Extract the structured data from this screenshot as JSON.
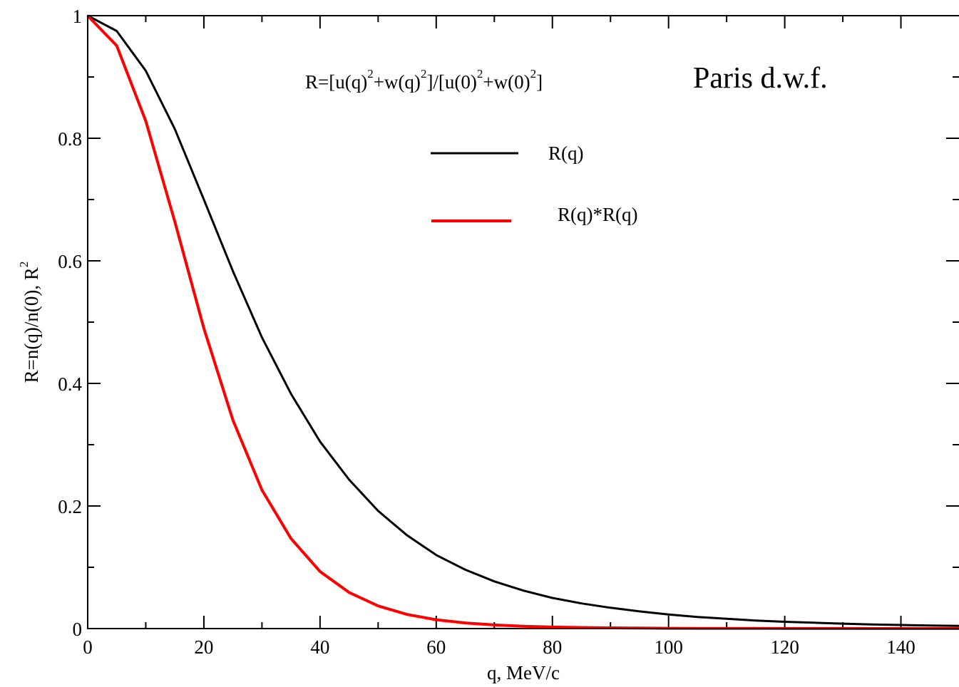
{
  "chart_data": {
    "type": "line",
    "title": "Paris d.w.f.",
    "formula": {
      "parts": [
        {
          "t": "R=[u(q)"
        },
        {
          "s": "2"
        },
        {
          "t": "+w(q)"
        },
        {
          "s": "2"
        },
        {
          "t": "]/[u(0)"
        },
        {
          "s": "2"
        },
        {
          "t": "+w(0)"
        },
        {
          "s": "2"
        },
        {
          "t": "]"
        }
      ]
    },
    "xlabel": "q, MeV/c",
    "ylabel": {
      "main": "R=n(q)/n(0), R",
      "sup": "2"
    },
    "xlim": [
      0,
      150
    ],
    "ylim": [
      0,
      1
    ],
    "xticks": [
      0,
      20,
      40,
      60,
      80,
      100,
      120,
      140
    ],
    "xtick_labels": [
      "0",
      "20",
      "40",
      "60",
      "80",
      "100",
      "120",
      "140"
    ],
    "yticks": [
      0,
      0.2,
      0.4,
      0.6,
      0.8,
      1
    ],
    "ytick_labels": [
      "0",
      "0.2",
      "0.4",
      "0.6",
      "0.8",
      "1"
    ],
    "x_minor_step": 10,
    "y_minor_step": 0.1,
    "grid": false,
    "legend_position": "upper-center",
    "x": [
      0,
      5,
      10,
      15,
      20,
      25,
      30,
      35,
      40,
      45,
      50,
      55,
      60,
      65,
      70,
      75,
      80,
      85,
      90,
      95,
      100,
      105,
      110,
      115,
      120,
      125,
      130,
      135,
      140,
      145,
      150
    ],
    "series": [
      {
        "name": "R(q)",
        "color": "#000000",
        "values": [
          1.0,
          0.975,
          0.91,
          0.815,
          0.7,
          0.583,
          0.475,
          0.383,
          0.305,
          0.243,
          0.192,
          0.152,
          0.12,
          0.096,
          0.077,
          0.062,
          0.05,
          0.041,
          0.034,
          0.028,
          0.023,
          0.019,
          0.016,
          0.013,
          0.011,
          0.0095,
          0.008,
          0.0068,
          0.0058,
          0.005,
          0.0043
        ]
      },
      {
        "name": "R(q)*R(q)",
        "color": "#ff0000",
        "values": [
          1.0,
          0.951,
          0.828,
          0.664,
          0.49,
          0.34,
          0.226,
          0.147,
          0.093,
          0.059,
          0.037,
          0.023,
          0.0144,
          0.0092,
          0.0059,
          0.0038,
          0.0025,
          0.0017,
          0.0012,
          0.0008,
          0.0005,
          0.0004,
          0.0003,
          0.0002,
          0.0001,
          0.0001,
          0.0001,
          0.0,
          0.0,
          0.0,
          0.0
        ]
      }
    ]
  }
}
